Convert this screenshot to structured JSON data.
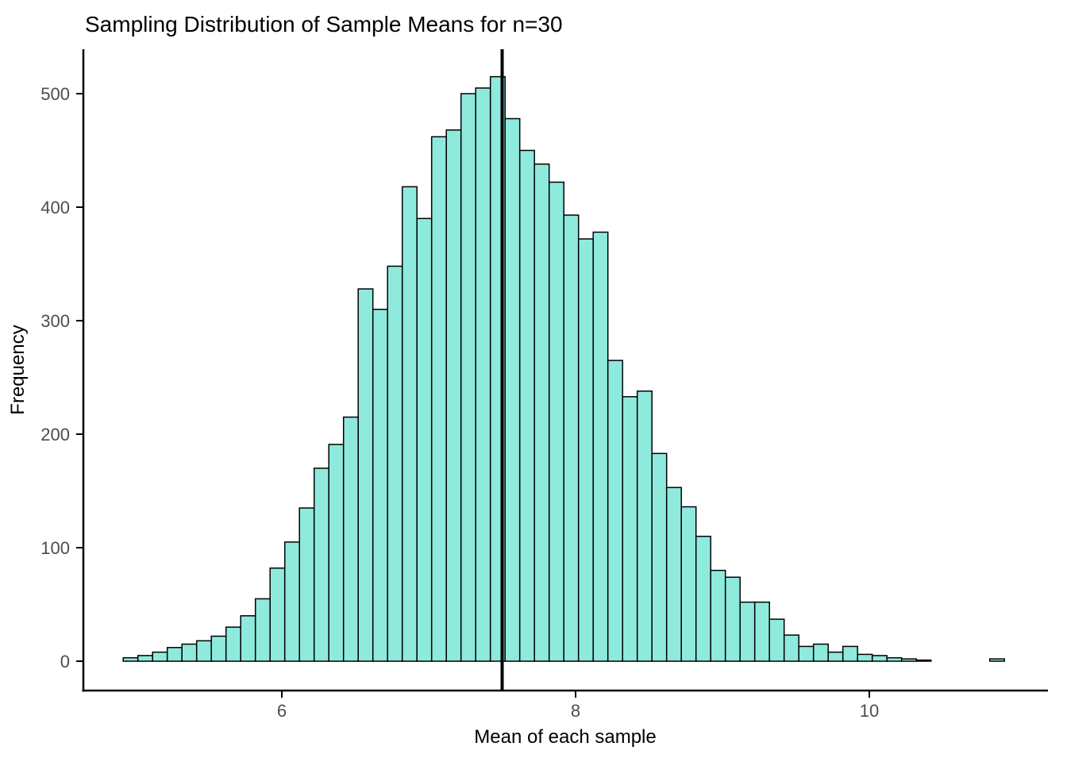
{
  "chart_data": {
    "type": "bar",
    "subtype": "histogram",
    "title": "Sampling Distribution of Sample Means for n=30",
    "xlabel": "Mean of each sample",
    "ylabel": "Frequency",
    "bin_start": 4.92,
    "bin_width": 0.1,
    "values": [
      3,
      5,
      8,
      12,
      15,
      18,
      22,
      30,
      40,
      55,
      82,
      105,
      135,
      170,
      191,
      215,
      328,
      310,
      348,
      418,
      390,
      462,
      468,
      500,
      505,
      515,
      478,
      450,
      438,
      422,
      393,
      372,
      378,
      265,
      233,
      238,
      183,
      153,
      136,
      110,
      80,
      74,
      52,
      52,
      37,
      23,
      13,
      15,
      8,
      13,
      6,
      5,
      3,
      2,
      1,
      0,
      0,
      0,
      0,
      2
    ],
    "mean_line_x": 7.5,
    "x_ticks": [
      6,
      8,
      10
    ],
    "y_ticks": [
      0,
      100,
      200,
      300,
      400,
      500
    ],
    "xlim": [
      4.6,
      11.2
    ],
    "ylim": [
      0,
      540
    ],
    "legend": "none",
    "grid": "off",
    "bar_fill": "#8feade",
    "bar_stroke": "#000000",
    "mean_line_color": "#000000",
    "axis_color": "#000000",
    "tick_label_color": "#4d4d4d",
    "background": "#ffffff"
  }
}
